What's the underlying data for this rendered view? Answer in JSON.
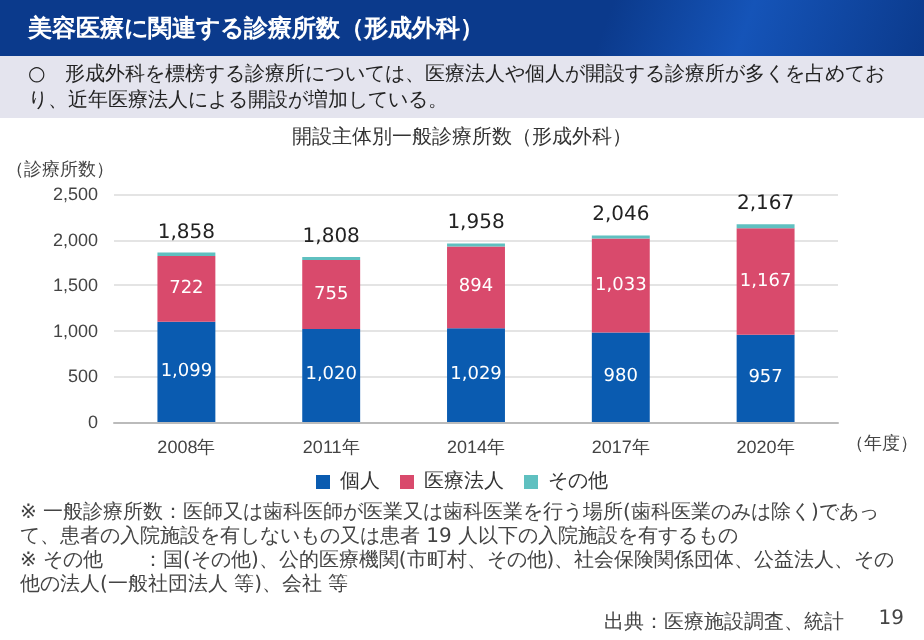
{
  "chart_data": {
    "type": "bar",
    "title": "美容医療に関連する診療所数（形成外科）",
    "subtitle": "開設主体別一般診療所数（形成外科）",
    "xlabel": "（年度）",
    "ylabel": "（診療所数）",
    "categories": [
      "2008年",
      "2011年",
      "2014年",
      "2017年",
      "2020年"
    ],
    "stacked": true,
    "series": [
      {
        "name": "個人",
        "color": "#0a5bb0",
        "values": [
          1099,
          1020,
          1029,
          980,
          957
        ],
        "value_labels": [
          "1,099",
          "1,020",
          "1,029",
          "980",
          "957"
        ]
      },
      {
        "name": "医療法人",
        "color": "#d94a6c",
        "values": [
          722,
          755,
          894,
          1033,
          1167
        ],
        "value_labels": [
          "722",
          "755",
          "894",
          "1,033",
          "1,167"
        ]
      },
      {
        "name": "その他",
        "color": "#5fc0c0",
        "values": [
          37,
          33,
          35,
          33,
          43
        ]
      }
    ],
    "totals": [
      "1,858",
      "1,808",
      "1,958",
      "2,046",
      "2,167"
    ],
    "ylim": [
      0,
      2500
    ],
    "yticks": [
      {
        "value": 0,
        "label": "0"
      },
      {
        "value": 500,
        "label": "500"
      },
      {
        "value": 1000,
        "label": "1,000"
      },
      {
        "value": 1500,
        "label": "1,500"
      },
      {
        "value": 2000,
        "label": "2,000"
      },
      {
        "value": 2500,
        "label": "2,500"
      }
    ],
    "grid": "y",
    "legend": "bottom",
    "annotations": [
      "○　形成外科を標榜する診療所については、医療法人や個人が開設する診療所が多くを占めており、近年医療法人による開設が増加している。",
      "※ 一般診療所数：医師又は歯科医師が医業又は歯科医業を行う場所(歯科医業のみは除く)であって、患者の入院施設を有しないもの又は患者 19 人以下の入院施設を有するもの",
      "※ その他　　：国(その他)、公的医療機関(市町村、その他)、社会保険関係団体、公益法人、その他の法人(一般社団法人 等)、会社 等",
      "出典：医療施設調査、統計",
      "19"
    ]
  }
}
